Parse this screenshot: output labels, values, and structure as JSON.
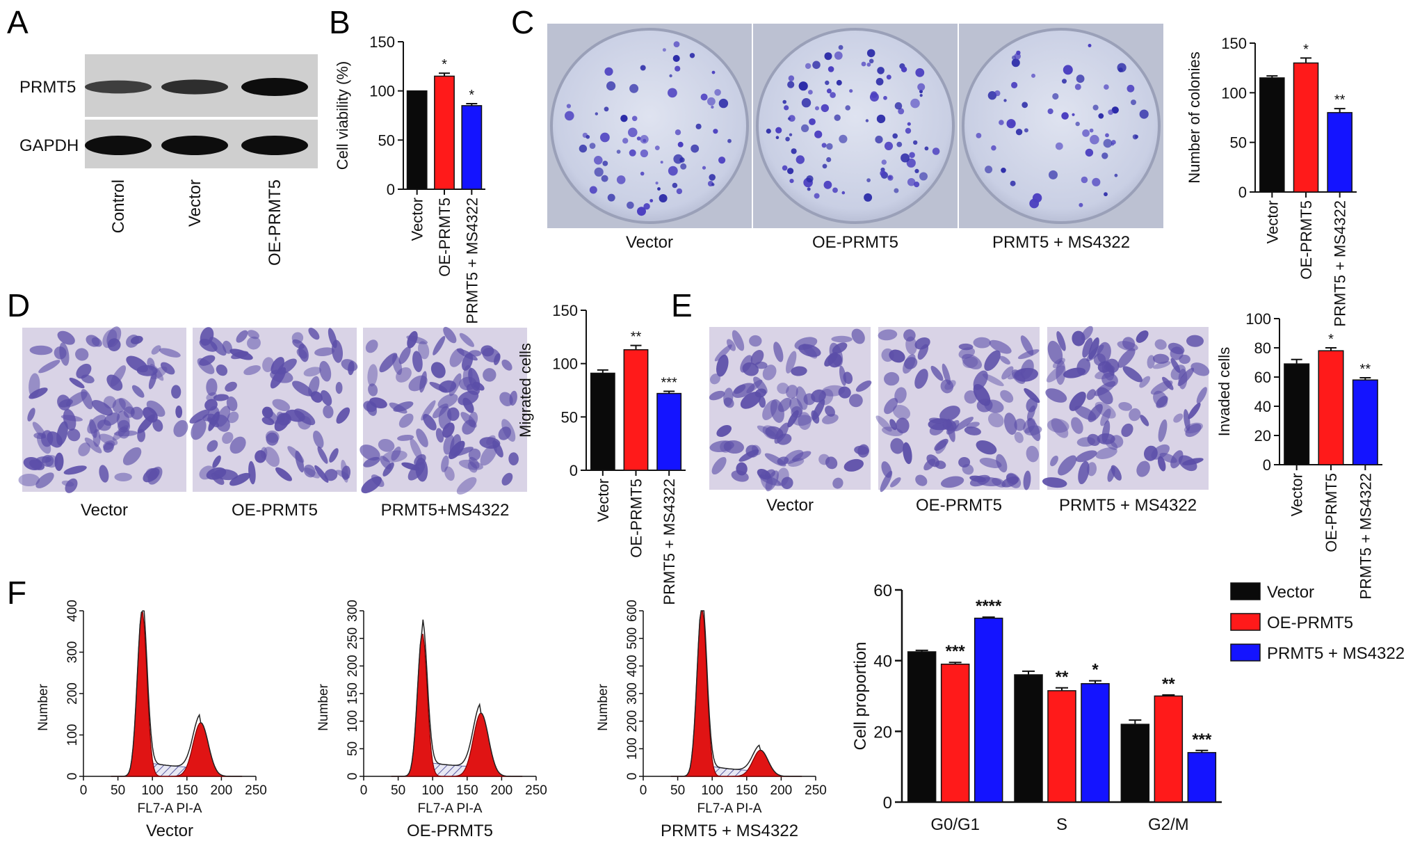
{
  "panel_letters": [
    "A",
    "B",
    "C",
    "D",
    "E",
    "F"
  ],
  "colors": {
    "black": "#0a0a0a",
    "red": "#ff1a1a",
    "blue": "#1414ff",
    "stain": "#5b4ea8",
    "dish": "#c7cde6"
  },
  "panel_a": {
    "rows": [
      "PRMT5",
      "GAPDH"
    ],
    "lanes": [
      "Control",
      "Vector",
      "OE-PRMT5"
    ],
    "band_intensity": {
      "PRMT5": [
        0.55,
        0.7,
        1.0
      ],
      "GAPDH": [
        1.0,
        1.0,
        1.0
      ]
    }
  },
  "panel_c": {
    "images": [
      "Vector",
      "OE-PRMT5",
      "PRMT5 + MS4322"
    ]
  },
  "panel_d": {
    "images": [
      "Vector",
      "OE-PRMT5",
      "PRMT5+MS4322"
    ]
  },
  "panel_e": {
    "images": [
      "Vector",
      "OE-PRMT5",
      "PRMT5 + MS4322"
    ]
  },
  "panel_f": {
    "histograms": [
      {
        "caption": "Vector",
        "xlabel": "FL7-A PI-A",
        "ylabel": "Number",
        "xticks": [
          "0",
          "50",
          "100",
          "150",
          "200",
          "250"
        ],
        "yticks": [
          "0",
          "100",
          "200",
          "300",
          "400"
        ],
        "g1_peak": 400,
        "g2_peak": 130
      },
      {
        "caption": "OE-PRMT5",
        "xlabel": "FL7-A PI-A",
        "ylabel": "Number",
        "xticks": [
          "0",
          "50",
          "100",
          "150",
          "200",
          "250"
        ],
        "yticks": [
          "0",
          "50",
          "100",
          "150",
          "200",
          "250",
          "300"
        ],
        "g1_peak": 260,
        "g2_peak": 115
      },
      {
        "caption": "PRMT5 + MS4322",
        "xlabel": "FL7-A PI-A",
        "ylabel": "Number",
        "xticks": [
          "0",
          "50",
          "100",
          "150",
          "200",
          "250"
        ],
        "yticks": [
          "0",
          "100",
          "200",
          "300",
          "400",
          "500",
          "600"
        ],
        "g1_peak": 620,
        "g2_peak": 95
      }
    ]
  },
  "chart_data": [
    {
      "panel": "B",
      "type": "bar",
      "categories": [
        "Vector",
        "OE-PRMT5",
        "PRMT5 + MS4322"
      ],
      "values": [
        100,
        115,
        85
      ],
      "errors": [
        0,
        3,
        2
      ],
      "significance": [
        "",
        "*",
        "*"
      ],
      "ylabel": "Cell viability (%)",
      "ylim": [
        0,
        150
      ],
      "yticks": [
        0,
        50,
        100,
        150
      ]
    },
    {
      "panel": "C",
      "type": "bar",
      "categories": [
        "Vector",
        "OE-PRMT5",
        "PRMT5 + MS4322"
      ],
      "values": [
        115,
        130,
        80
      ],
      "errors": [
        2,
        5,
        4
      ],
      "significance": [
        "",
        "*",
        "**"
      ],
      "ylabel": "Number of colonies",
      "ylim": [
        0,
        150
      ],
      "yticks": [
        0,
        50,
        100,
        150
      ]
    },
    {
      "panel": "D",
      "type": "bar",
      "categories": [
        "Vector",
        "OE-PRMT5",
        "PRMT5 + MS4322"
      ],
      "values": [
        91,
        113,
        72
      ],
      "errors": [
        3,
        4,
        2
      ],
      "significance": [
        "",
        "**",
        "***"
      ],
      "ylabel": "Migrated cells",
      "ylim": [
        0,
        150
      ],
      "yticks": [
        0,
        50,
        100,
        150
      ]
    },
    {
      "panel": "E",
      "type": "bar",
      "categories": [
        "Vector",
        "OE-PRMT5",
        "PRMT5 + MS4322"
      ],
      "values": [
        69,
        78,
        58
      ],
      "errors": [
        3,
        2,
        1.5
      ],
      "significance": [
        "",
        "*",
        "**"
      ],
      "ylabel": "Invaded cells",
      "ylim": [
        0,
        100
      ],
      "yticks": [
        0,
        20,
        40,
        60,
        80,
        100
      ]
    },
    {
      "panel": "F",
      "type": "bar",
      "categories": [
        "G0/G1",
        "S",
        "G2/M"
      ],
      "series": [
        {
          "name": "Vector",
          "values": [
            42.5,
            36,
            22
          ],
          "errors": [
            0.4,
            1,
            1.2
          ],
          "significance": [
            "",
            "",
            ""
          ]
        },
        {
          "name": "OE-PRMT5",
          "values": [
            39,
            31.5,
            30
          ],
          "errors": [
            0.5,
            0.8,
            0.3
          ],
          "significance": [
            "***",
            "**",
            "**"
          ]
        },
        {
          "name": "PRMT5 + MS4322",
          "values": [
            52,
            33.5,
            14
          ],
          "errors": [
            0.3,
            0.8,
            0.6
          ],
          "significance": [
            "****",
            "*",
            "***"
          ]
        }
      ],
      "ylabel": "Cell proportion",
      "ylim": [
        0,
        60
      ],
      "yticks": [
        0,
        20,
        40,
        60
      ],
      "legend": "top-right"
    }
  ]
}
